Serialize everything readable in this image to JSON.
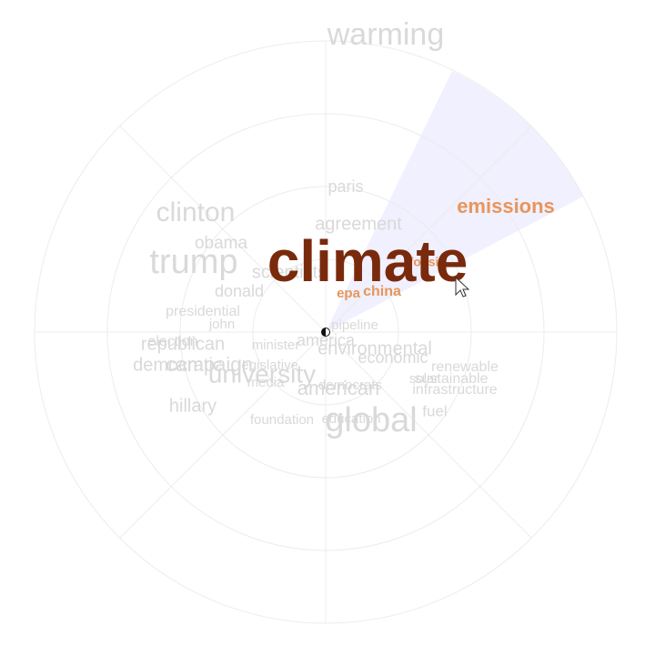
{
  "diagram": {
    "type": "radial-word-cloud",
    "focus_word": "climate",
    "colors": {
      "dim": "#d9d9d9",
      "highlight": "#e8955a",
      "focus": "#7a2a0c",
      "sector": "#eeeeff",
      "grid": "#ececec"
    },
    "words": [
      {
        "text": "warming",
        "group": "dim"
      },
      {
        "text": "paris",
        "group": "dim"
      },
      {
        "text": "agreement",
        "group": "dim"
      },
      {
        "text": "clinton",
        "group": "dim"
      },
      {
        "text": "obama",
        "group": "dim"
      },
      {
        "text": "trump",
        "group": "dim"
      },
      {
        "text": "scientists",
        "group": "dim"
      },
      {
        "text": "donald",
        "group": "dim"
      },
      {
        "text": "presidential",
        "group": "dim"
      },
      {
        "text": "john",
        "group": "dim"
      },
      {
        "text": "republican",
        "group": "dim"
      },
      {
        "text": "election",
        "group": "dim"
      },
      {
        "text": "democratic",
        "group": "dim"
      },
      {
        "text": "campaign",
        "group": "dim"
      },
      {
        "text": "university",
        "group": "dim"
      },
      {
        "text": "legislative",
        "group": "dim"
      },
      {
        "text": "media",
        "group": "dim"
      },
      {
        "text": "hillary",
        "group": "dim"
      },
      {
        "text": "foundation",
        "group": "dim"
      },
      {
        "text": "minister",
        "group": "dim"
      },
      {
        "text": "america",
        "group": "dim"
      },
      {
        "text": "pipeline",
        "group": "dim"
      },
      {
        "text": "environmental",
        "group": "dim"
      },
      {
        "text": "economic",
        "group": "dim"
      },
      {
        "text": "renewable",
        "group": "dim"
      },
      {
        "text": "solar",
        "group": "dim"
      },
      {
        "text": "sustainable",
        "group": "dim"
      },
      {
        "text": "infrastructure",
        "group": "dim"
      },
      {
        "text": "fuel",
        "group": "dim"
      },
      {
        "text": "american",
        "group": "dim"
      },
      {
        "text": "democrats",
        "group": "dim"
      },
      {
        "text": "education",
        "group": "dim"
      },
      {
        "text": "global",
        "group": "dim"
      },
      {
        "text": "emissions",
        "group": "hl"
      },
      {
        "text": "fossil",
        "group": "hl"
      },
      {
        "text": "epa",
        "group": "hl"
      },
      {
        "text": "china",
        "group": "hl"
      },
      {
        "text": "climate",
        "group": "focus"
      }
    ]
  }
}
